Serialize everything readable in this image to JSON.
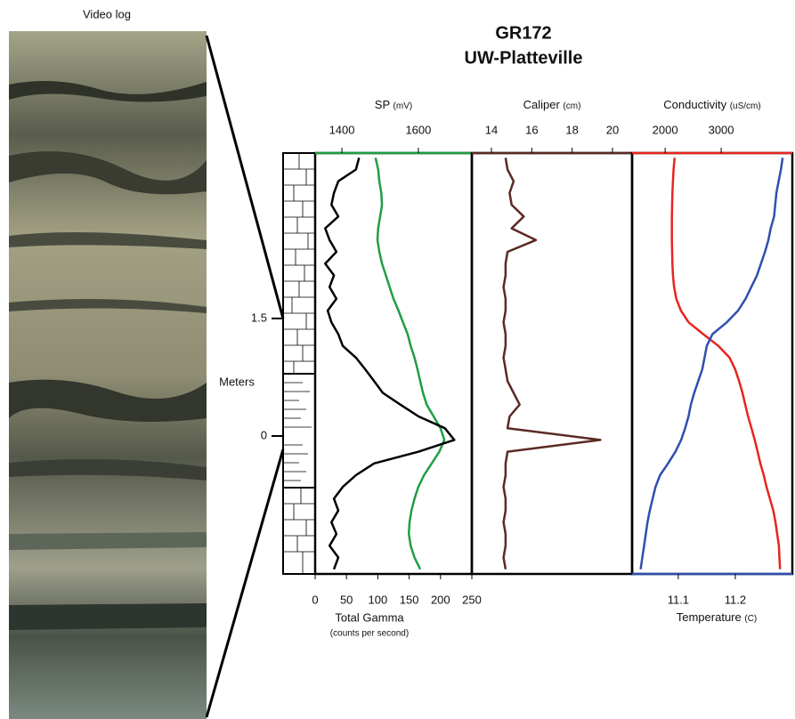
{
  "chart_data": {
    "type": "well-log",
    "title": "GR172",
    "subtitle": "UW-Platteville",
    "image_label": "Video log",
    "ylabel": "Meters",
    "ylim": [
      -1.76,
      3.61
    ],
    "yticks": [
      0,
      1.5
    ],
    "depth": [
      3.55,
      3.4,
      3.25,
      3.1,
      2.95,
      2.8,
      2.65,
      2.5,
      2.35,
      2.2,
      2.05,
      1.9,
      1.75,
      1.6,
      1.45,
      1.3,
      1.15,
      1.0,
      0.85,
      0.7,
      0.55,
      0.4,
      0.25,
      0.1,
      -0.05,
      -0.2,
      -0.35,
      -0.5,
      -0.65,
      -0.8,
      -0.95,
      -1.1,
      -1.25,
      -1.4,
      -1.55,
      -1.7
    ],
    "tracks": [
      {
        "axes": [
          {
            "side": "top",
            "label": "SP",
            "unit": "(mV)",
            "color": "#1f9e45",
            "xlim": [
              1330,
              1740
            ],
            "xticks": [
              1400,
              1600
            ],
            "values": [
              1488,
              1495,
              1498,
              1503,
              1505,
              1500,
              1495,
              1493,
              1498,
              1505,
              1515,
              1525,
              1535,
              1548,
              1560,
              1572,
              1580,
              1590,
              1598,
              1605,
              1612,
              1622,
              1640,
              1658,
              1668,
              1655,
              1635,
              1615,
              1600,
              1590,
              1582,
              1577,
              1575,
              1580,
              1590,
              1605
            ]
          },
          {
            "side": "bottom",
            "label": "Total Gamma",
            "unit": "(counts per second)",
            "color": "#000000",
            "xlim": [
              0,
              250
            ],
            "xticks": [
              0,
              50,
              100,
              150,
              200,
              250
            ],
            "values": [
              70,
              65,
              37,
              30,
              26,
              37,
              16,
              23,
              34,
              16,
              30,
              23,
              34,
              20,
              26,
              37,
              44,
              65,
              80,
              94,
              108,
              136,
              165,
              207,
              222,
              165,
              94,
              65,
              44,
              30,
              37,
              26,
              34,
              23,
              37,
              30
            ]
          }
        ]
      },
      {
        "axes": [
          {
            "side": "top",
            "label": "Caliper",
            "unit": "(cm)",
            "color": "#5a2a24",
            "xlim": [
              13.03,
              20.97
            ],
            "xticks": [
              14,
              16,
              18,
              20
            ],
            "values": [
              14.7,
              14.8,
              15.1,
              14.9,
              15.0,
              15.6,
              15.0,
              16.2,
              14.8,
              14.7,
              14.7,
              14.6,
              14.7,
              14.7,
              14.6,
              14.7,
              14.7,
              14.6,
              14.7,
              14.8,
              15.1,
              15.4,
              14.9,
              14.8,
              19.4,
              14.8,
              14.7,
              14.7,
              14.6,
              14.7,
              14.7,
              14.6,
              14.7,
              14.7,
              14.6,
              14.7
            ]
          }
        ]
      },
      {
        "axes": [
          {
            "side": "top",
            "label": "Conductivity",
            "unit": "(uS/cm)",
            "color": "#e8251e",
            "xlim": [
              1410,
              4270
            ],
            "xticks": [
              2000,
              3000
            ],
            "values": [
              2170,
              2150,
              2140,
              2130,
              2125,
              2120,
              2120,
              2120,
              2125,
              2130,
              2140,
              2160,
              2200,
              2280,
              2420,
              2680,
              2950,
              3150,
              3250,
              3320,
              3380,
              3430,
              3480,
              3540,
              3600,
              3650,
              3700,
              3760,
              3810,
              3870,
              3930,
              3970,
              4000,
              4030,
              4040,
              4050
            ]
          },
          {
            "side": "bottom",
            "label": "Temperature",
            "unit": "(C)",
            "color": "#2f4fb0",
            "xlim": [
              11.019,
              11.3
            ],
            "xticks": [
              11.1,
              11.2
            ],
            "values": [
              11.283,
              11.28,
              11.276,
              11.272,
              11.27,
              11.268,
              11.262,
              11.258,
              11.252,
              11.245,
              11.238,
              11.228,
              11.218,
              11.205,
              11.185,
              11.16,
              11.15,
              11.146,
              11.142,
              11.135,
              11.128,
              11.122,
              11.118,
              11.112,
              11.105,
              11.095,
              11.082,
              11.068,
              11.06,
              11.055,
              11.05,
              11.046,
              11.043,
              11.04,
              11.037,
              11.034
            ]
          }
        ]
      }
    ]
  }
}
